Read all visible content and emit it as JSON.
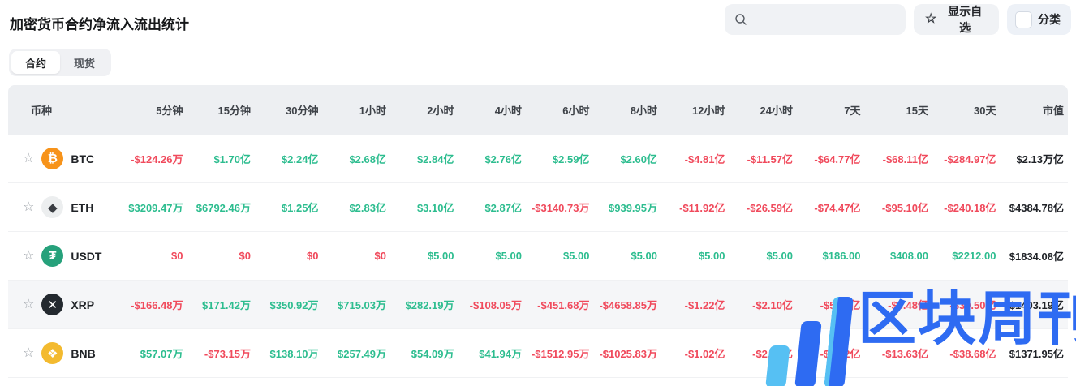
{
  "page": {
    "title": "加密货币合约净流入流出统计"
  },
  "toolbar": {
    "search_placeholder": "",
    "favorites_label": "显示自选",
    "favorites_star": "☆",
    "category_label": "分类"
  },
  "tabs": [
    {
      "label": "合约",
      "active": true
    },
    {
      "label": "现货",
      "active": false
    }
  ],
  "table": {
    "columns": [
      "币种",
      "5分钟",
      "15分钟",
      "30分钟",
      "1小时",
      "2小时",
      "4小时",
      "6小时",
      "8小时",
      "12小时",
      "24小时",
      "7天",
      "15天",
      "30天",
      "市值"
    ],
    "row_star": "☆",
    "rows": [
      {
        "symbol": "BTC",
        "highlighted": false,
        "icon": {
          "name": "btc-icon",
          "glyph": "₿",
          "bg": "#F7931A",
          "fg": "#ffffff"
        },
        "values": [
          {
            "text": "-$124.26万",
            "tone": "red"
          },
          {
            "text": "$1.70亿",
            "tone": "green"
          },
          {
            "text": "$2.24亿",
            "tone": "green"
          },
          {
            "text": "$2.68亿",
            "tone": "green"
          },
          {
            "text": "$2.84亿",
            "tone": "green"
          },
          {
            "text": "$2.76亿",
            "tone": "green"
          },
          {
            "text": "$2.59亿",
            "tone": "green"
          },
          {
            "text": "$2.60亿",
            "tone": "green"
          },
          {
            "text": "-$4.81亿",
            "tone": "red"
          },
          {
            "text": "-$11.57亿",
            "tone": "red"
          },
          {
            "text": "-$64.77亿",
            "tone": "red"
          },
          {
            "text": "-$68.11亿",
            "tone": "red"
          },
          {
            "text": "-$284.97亿",
            "tone": "red"
          }
        ],
        "market_cap": "$2.13万亿"
      },
      {
        "symbol": "ETH",
        "highlighted": false,
        "icon": {
          "name": "eth-icon",
          "glyph": "◆",
          "bg": "#eceeef",
          "fg": "#3a3d42"
        },
        "values": [
          {
            "text": "$3209.47万",
            "tone": "green"
          },
          {
            "text": "$6792.46万",
            "tone": "green"
          },
          {
            "text": "$1.25亿",
            "tone": "green"
          },
          {
            "text": "$2.83亿",
            "tone": "green"
          },
          {
            "text": "$3.10亿",
            "tone": "green"
          },
          {
            "text": "$2.87亿",
            "tone": "green"
          },
          {
            "text": "-$3140.73万",
            "tone": "red"
          },
          {
            "text": "$939.95万",
            "tone": "green"
          },
          {
            "text": "-$11.92亿",
            "tone": "red"
          },
          {
            "text": "-$26.59亿",
            "tone": "red"
          },
          {
            "text": "-$74.47亿",
            "tone": "red"
          },
          {
            "text": "-$95.10亿",
            "tone": "red"
          },
          {
            "text": "-$240.18亿",
            "tone": "red"
          }
        ],
        "market_cap": "$4384.78亿"
      },
      {
        "symbol": "USDT",
        "highlighted": false,
        "icon": {
          "name": "usdt-icon",
          "glyph": "₮",
          "bg": "#26A17B",
          "fg": "#ffffff"
        },
        "values": [
          {
            "text": "$0",
            "tone": "red"
          },
          {
            "text": "$0",
            "tone": "red"
          },
          {
            "text": "$0",
            "tone": "red"
          },
          {
            "text": "$0",
            "tone": "red"
          },
          {
            "text": "$5.00",
            "tone": "green"
          },
          {
            "text": "$5.00",
            "tone": "green"
          },
          {
            "text": "$5.00",
            "tone": "green"
          },
          {
            "text": "$5.00",
            "tone": "green"
          },
          {
            "text": "$5.00",
            "tone": "green"
          },
          {
            "text": "$5.00",
            "tone": "green"
          },
          {
            "text": "$186.00",
            "tone": "green"
          },
          {
            "text": "$408.00",
            "tone": "green"
          },
          {
            "text": "$2212.00",
            "tone": "green"
          }
        ],
        "market_cap": "$1834.08亿"
      },
      {
        "symbol": "XRP",
        "highlighted": true,
        "icon": {
          "name": "xrp-icon",
          "glyph": "✕",
          "bg": "#23292f",
          "fg": "#ffffff"
        },
        "values": [
          {
            "text": "-$166.48万",
            "tone": "red"
          },
          {
            "text": "$171.42万",
            "tone": "green"
          },
          {
            "text": "$350.92万",
            "tone": "green"
          },
          {
            "text": "$715.03万",
            "tone": "green"
          },
          {
            "text": "$282.19万",
            "tone": "green"
          },
          {
            "text": "-$108.05万",
            "tone": "red"
          },
          {
            "text": "-$451.68万",
            "tone": "red"
          },
          {
            "text": "-$4658.85万",
            "tone": "red"
          },
          {
            "text": "-$1.22亿",
            "tone": "red"
          },
          {
            "text": "-$2.10亿",
            "tone": "red"
          },
          {
            "text": "-$5.09亿",
            "tone": "red"
          },
          {
            "text": "-$8.48亿",
            "tone": "red"
          },
          {
            "text": "-$39.50亿",
            "tone": "red"
          }
        ],
        "market_cap": "$1403.19亿"
      },
      {
        "symbol": "BNB",
        "highlighted": false,
        "icon": {
          "name": "bnb-icon",
          "glyph": "❖",
          "bg": "#F3BA2F",
          "fg": "#ffffff"
        },
        "values": [
          {
            "text": "$57.07万",
            "tone": "green"
          },
          {
            "text": "-$73.15万",
            "tone": "red"
          },
          {
            "text": "$138.10万",
            "tone": "green"
          },
          {
            "text": "$257.49万",
            "tone": "green"
          },
          {
            "text": "$54.09万",
            "tone": "green"
          },
          {
            "text": "$41.94万",
            "tone": "green"
          },
          {
            "text": "-$1512.95万",
            "tone": "red"
          },
          {
            "text": "-$1025.83万",
            "tone": "red"
          },
          {
            "text": "-$1.02亿",
            "tone": "red"
          },
          {
            "text": "-$2.21亿",
            "tone": "red"
          },
          {
            "text": "-$7.22亿",
            "tone": "red"
          },
          {
            "text": "-$13.63亿",
            "tone": "red"
          },
          {
            "text": "-$38.68亿",
            "tone": "red"
          }
        ],
        "market_cap": "$1371.95亿"
      }
    ]
  },
  "watermark": {
    "text": "区块周刊",
    "accent_blue": "#2e6bf2",
    "accent_cyan": "#56c0f3"
  },
  "colors": {
    "positive": "#2dbd8f",
    "negative": "#f04a5c",
    "header_bg": "#edeff2"
  }
}
